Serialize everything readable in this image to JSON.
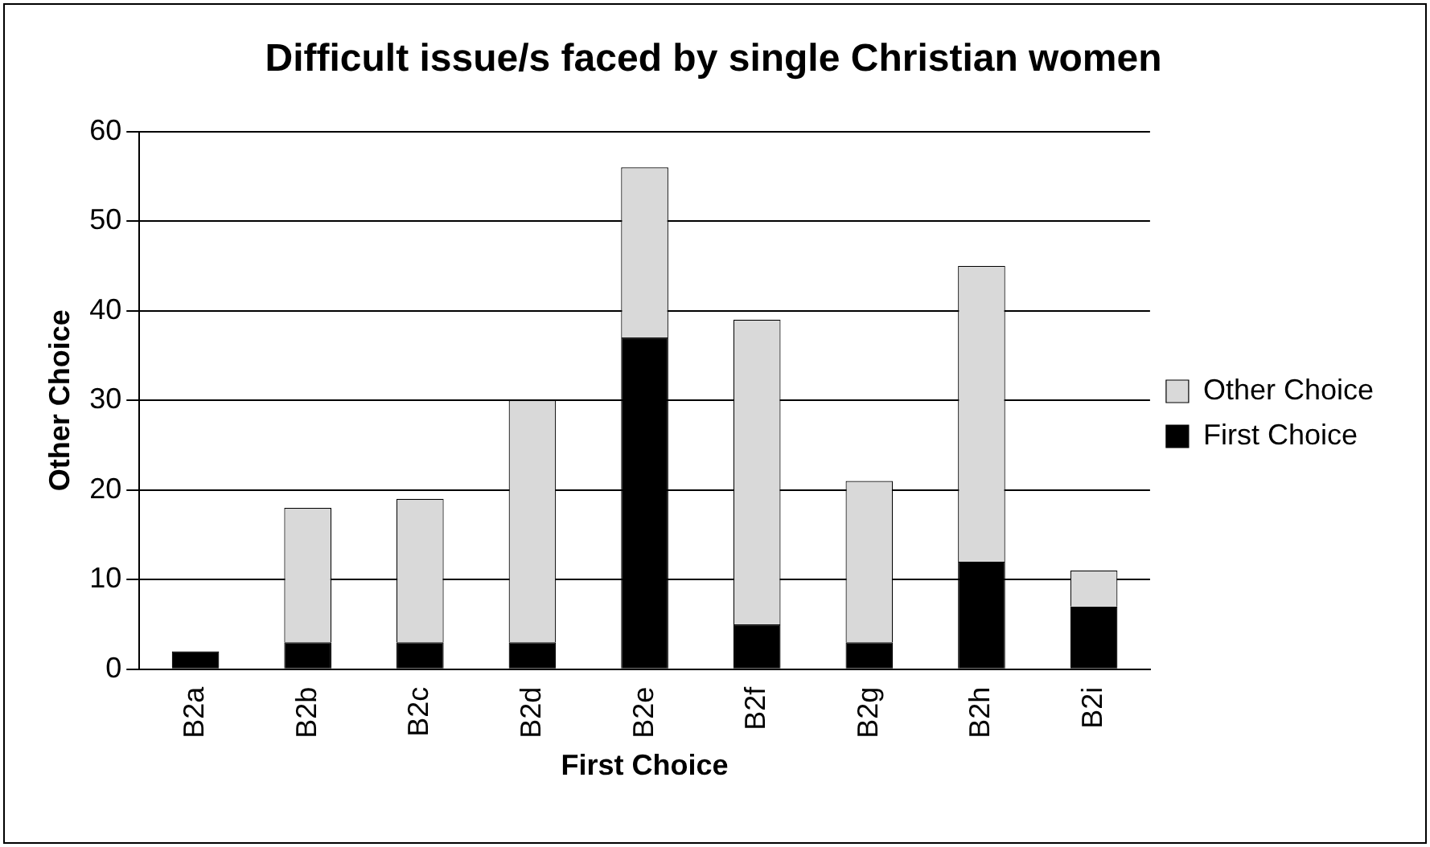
{
  "chart_data": {
    "type": "bar",
    "title": "Difficult issue/s faced by single Christian women",
    "xlabel": "First Choice",
    "ylabel": "Other Choice",
    "categories": [
      "B2a",
      "B2b",
      "B2c",
      "B2d",
      "B2e",
      "B2f",
      "B2g",
      "B2h",
      "B2i"
    ],
    "series": [
      {
        "name": "First Choice",
        "color": "#000000",
        "values": [
          2,
          3,
          3,
          3,
          37,
          5,
          3,
          12,
          7
        ]
      },
      {
        "name": "Other Choice",
        "color": "#d9d9d9",
        "values": [
          0,
          15,
          16,
          27,
          19,
          34,
          18,
          33,
          4
        ]
      }
    ],
    "stacked": true,
    "ylim": [
      0,
      60
    ],
    "yticks": [
      0,
      10,
      20,
      30,
      40,
      50,
      60
    ],
    "grid": "y",
    "legend": "right"
  }
}
